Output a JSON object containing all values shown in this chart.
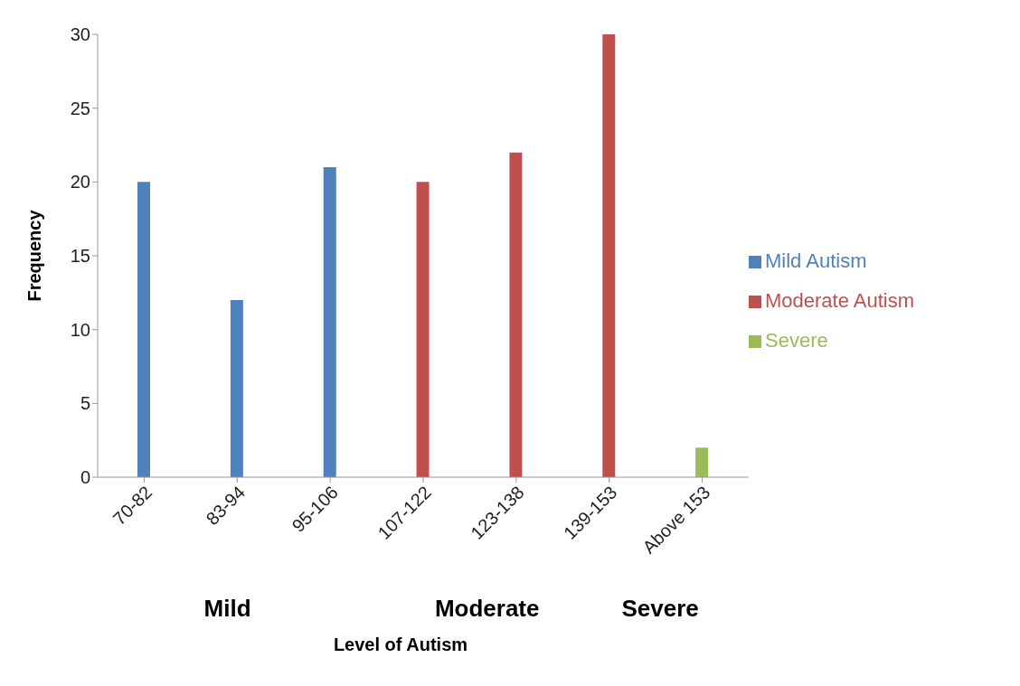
{
  "chart_data": {
    "type": "bar",
    "xlabel": "Level of Autism",
    "ylabel": "Frequency",
    "categories": [
      "70-82",
      "83-94",
      "95-106",
      "107-122",
      "123-138",
      "139-153",
      "Above 153"
    ],
    "series": [
      {
        "name": "Mild Autism",
        "color": "#4f81bd",
        "values": [
          20,
          12,
          21,
          null,
          null,
          null,
          null
        ]
      },
      {
        "name": "Moderate Autism",
        "color": "#c0504d",
        "values": [
          null,
          null,
          null,
          20,
          22,
          30,
          null
        ]
      },
      {
        "name": "Severe",
        "color": "#9bbb59",
        "values": [
          null,
          null,
          null,
          null,
          null,
          null,
          2
        ]
      }
    ],
    "ylim": [
      0,
      30
    ],
    "yticks": [
      0,
      5,
      10,
      15,
      20,
      25,
      30
    ],
    "grid": false,
    "legend": "right",
    "annotations": [
      "Mild",
      "Moderate",
      "Severe"
    ]
  }
}
